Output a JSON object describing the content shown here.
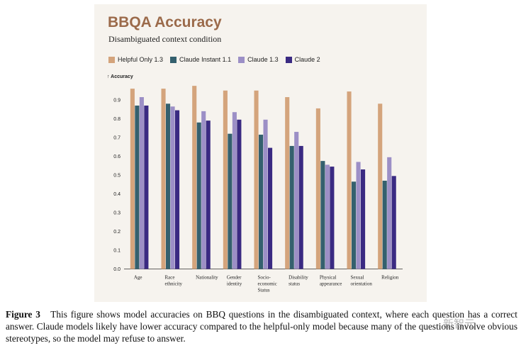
{
  "chart_data": {
    "type": "bar",
    "title": "BBQA Accuracy",
    "subtitle": "Disambiguated context condition",
    "ylabel": "↑ Accuracy",
    "xlabel": "",
    "ylim": [
      0,
      1.0
    ],
    "yticks": [
      "0.0",
      "0.1",
      "0.2",
      "0.3",
      "0.4",
      "0.5",
      "0.6",
      "0.7",
      "0.8",
      "0.9"
    ],
    "ytick_values": [
      0,
      0.1,
      0.2,
      0.3,
      0.4,
      0.5,
      0.6,
      0.7,
      0.8,
      0.9
    ],
    "legend_position": "top-left",
    "categories": [
      [
        "Age"
      ],
      [
        "Race",
        "ethnicity"
      ],
      [
        "Nationality"
      ],
      [
        "Gender",
        "identity"
      ],
      [
        "Socio-",
        "economic",
        "Status"
      ],
      [
        "Disability",
        "status"
      ],
      [
        "Physical",
        "appearance"
      ],
      [
        "Sexual",
        "orientation"
      ],
      [
        "Religion"
      ]
    ],
    "series": [
      {
        "name": "Helpful Only 1.3",
        "color": "#d4a47c",
        "values": [
          0.96,
          0.96,
          0.975,
          0.95,
          0.95,
          0.915,
          0.855,
          0.945,
          0.88
        ]
      },
      {
        "name": "Claude Instant 1.1",
        "color": "#34606e",
        "values": [
          0.87,
          0.88,
          0.78,
          0.72,
          0.715,
          0.655,
          0.575,
          0.465,
          0.47
        ]
      },
      {
        "name": "Claude 1.3",
        "color": "#9c8fc6",
        "values": [
          0.915,
          0.865,
          0.84,
          0.835,
          0.795,
          0.73,
          0.555,
          0.57,
          0.595
        ]
      },
      {
        "name": "Claude 2",
        "color": "#3a2a82",
        "values": [
          0.87,
          0.845,
          0.79,
          0.795,
          0.645,
          0.655,
          0.545,
          0.53,
          0.495
        ]
      }
    ]
  },
  "caption": {
    "label": "Figure 3",
    "text": "This figure shows model accuracies on BBQ questions in the disambiguated context, where each question has a correct answer. Claude models likely have lower accuracy compared to the helpful-only model because many of the questions involve obvious stereotypes, so the model may refuse to answer."
  },
  "watermark": "新智元"
}
